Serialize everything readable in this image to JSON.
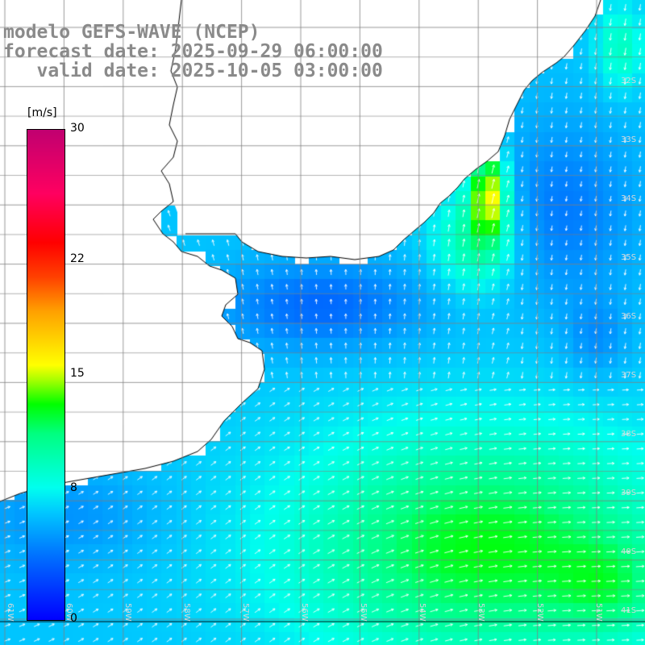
{
  "title": {
    "line1": "modelo GEFS-WAVE (NCEP)",
    "line2": "forecast date: 2025-09-29 06:00:00",
    "line3": "   valid date: 2025-10-05 03:00:00"
  },
  "colorbar": {
    "unit": "[m/s]",
    "range": [
      0,
      30
    ],
    "ticks": [
      {
        "value": 30,
        "label": "30"
      },
      {
        "value": 22,
        "label": "22"
      },
      {
        "value": 15,
        "label": "15"
      },
      {
        "value": 8,
        "label": "8"
      },
      {
        "value": 0,
        "label": "0"
      }
    ]
  },
  "grid": {
    "lat_labels": [
      "32S",
      "33S",
      "34S",
      "35S",
      "36S",
      "37S",
      "38S",
      "39S",
      "40S",
      "41S"
    ],
    "lon_labels": [
      "61W",
      "60W",
      "59W",
      "58W",
      "57W",
      "56W",
      "55W",
      "54W",
      "53W",
      "52W",
      "51W"
    ]
  },
  "colors": {
    "calm": "#0050ff",
    "moderate": "#00ffee",
    "strong": "#00ff40",
    "peak": "#ffe000",
    "land": "#ffffff",
    "coastline": "#000000",
    "gridline": "#808080",
    "arrow": "#ffffff"
  }
}
